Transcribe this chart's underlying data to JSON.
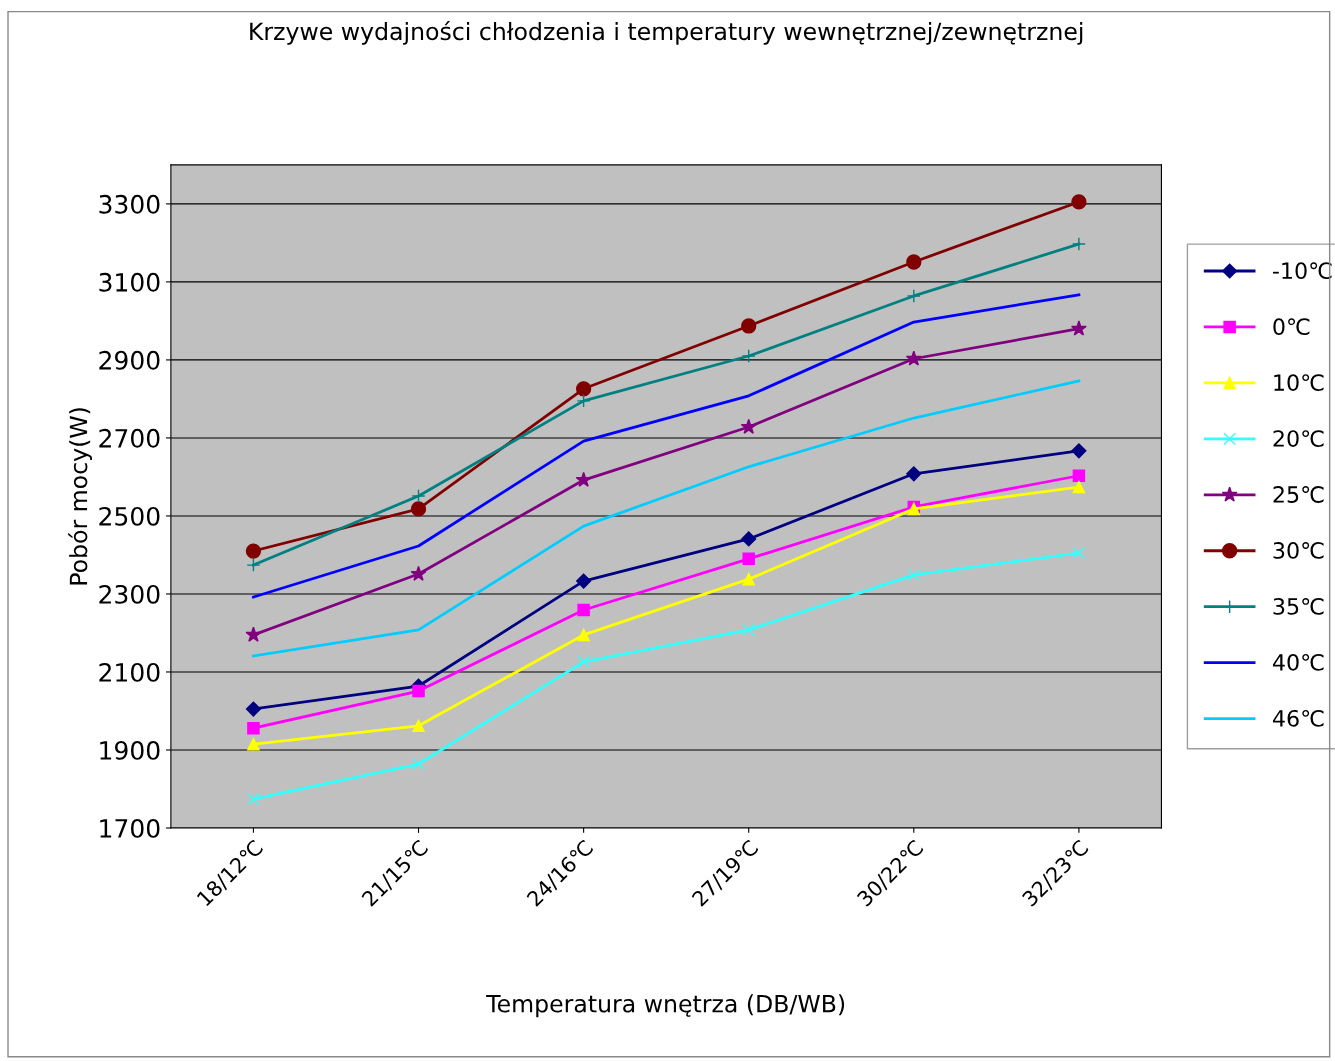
{
  "chart_data": {
    "type": "line",
    "title": "Krzywe wydajności chłodzenia i temperatury wewnętrznej/zewnętrznej",
    "xlabel": "Temperatura wnętrza (DB/WB)",
    "ylabel": "Pobór mocy(W)",
    "categories": [
      "18/12℃",
      "21/15℃",
      "24/16℃",
      "27/19℃",
      "30/22℃",
      "32/23℃"
    ],
    "ylim": [
      1700,
      3400
    ],
    "yticks": [
      1700,
      1900,
      2100,
      2300,
      2500,
      2700,
      2900,
      3100,
      3300
    ],
    "grid": "y",
    "legend": "right",
    "series": [
      {
        "name": "-10℃",
        "color": "#000080",
        "marker": "diamond",
        "values": [
          2005,
          2064,
          2333,
          2441,
          2608,
          2667
        ]
      },
      {
        "name": "0℃",
        "color": "#ff00ff",
        "marker": "square",
        "values": [
          1956,
          2051,
          2259,
          2390,
          2523,
          2603
        ]
      },
      {
        "name": "10℃",
        "color": "#ffff00",
        "marker": "triangle",
        "values": [
          1915,
          1962,
          2195,
          2338,
          2518,
          2574
        ]
      },
      {
        "name": "20℃",
        "color": "#33ffff",
        "marker": "cross",
        "values": [
          1774,
          1864,
          2126,
          2208,
          2349,
          2405
        ]
      },
      {
        "name": "25℃",
        "color": "#800080",
        "marker": "star",
        "values": [
          2195,
          2351,
          2592,
          2728,
          2903,
          2980
        ]
      },
      {
        "name": "30℃",
        "color": "#800000",
        "marker": "circle",
        "values": [
          2410,
          2518,
          2826,
          2987,
          3151,
          3305
        ]
      },
      {
        "name": "35℃",
        "color": "#008080",
        "marker": "plus",
        "values": [
          2374,
          2551,
          2795,
          2910,
          3064,
          3197
        ]
      },
      {
        "name": "40℃",
        "color": "#0000ff",
        "marker": "none",
        "values": [
          2292,
          2423,
          2692,
          2808,
          2997,
          3067
        ]
      },
      {
        "name": "46℃",
        "color": "#00ccff",
        "marker": "none",
        "values": [
          2141,
          2208,
          2474,
          2626,
          2751,
          2846
        ]
      }
    ]
  }
}
